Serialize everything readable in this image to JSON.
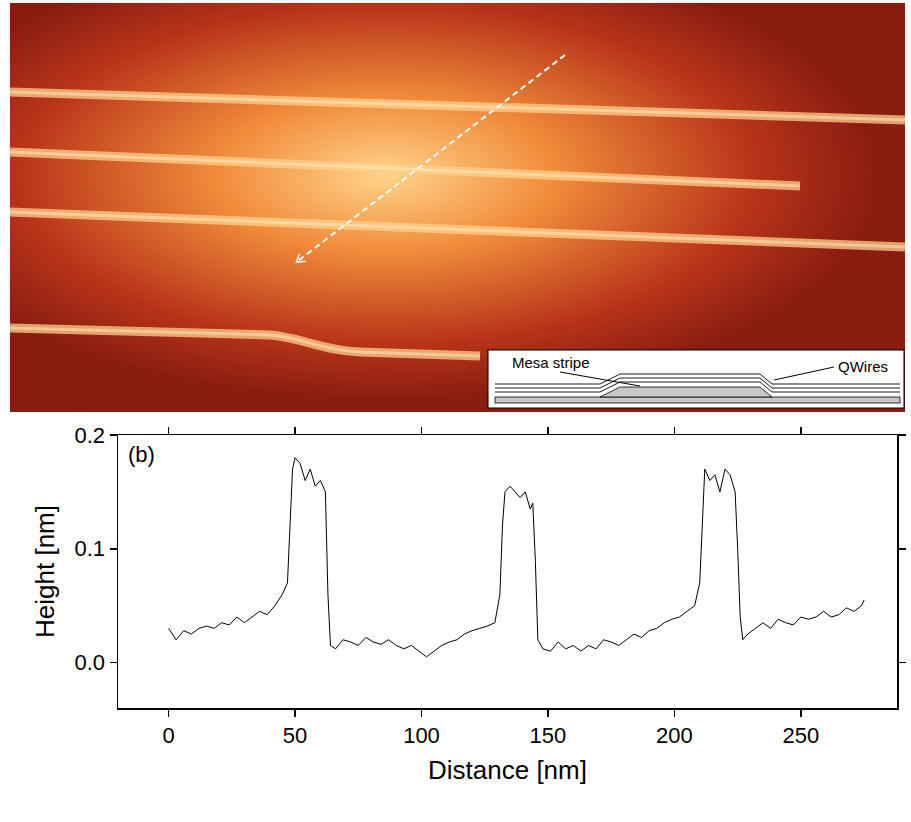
{
  "image": {
    "inset_labels": [
      "Mesa stripe",
      "QWires"
    ]
  },
  "chart_data": {
    "type": "line",
    "panel_label": "(b)",
    "x_label": "Distance [nm]",
    "y_label": "Height [nm]",
    "color": "#000000",
    "x": [
      0,
      3,
      6,
      9,
      12,
      15,
      18,
      21,
      24,
      27,
      30,
      33,
      36,
      39,
      42,
      45,
      47,
      48,
      49,
      50,
      52,
      54,
      56,
      58,
      60,
      62,
      63,
      64,
      66,
      69,
      72,
      75,
      78,
      81,
      84,
      87,
      90,
      93,
      96,
      99,
      102,
      105,
      108,
      111,
      114,
      117,
      120,
      123,
      126,
      129,
      131,
      132,
      133,
      135,
      137,
      139,
      141,
      143,
      144,
      145,
      146,
      148,
      151,
      154,
      157,
      160,
      163,
      166,
      169,
      172,
      175,
      178,
      181,
      184,
      187,
      190,
      193,
      196,
      199,
      202,
      205,
      208,
      210,
      211,
      212,
      214,
      216,
      218,
      220,
      222,
      224,
      225,
      226,
      227,
      229,
      232,
      235,
      238,
      241,
      244,
      247,
      250,
      253,
      256,
      259,
      262,
      265,
      268,
      271,
      274,
      275
    ],
    "values": [
      0.03,
      0.02,
      0.028,
      0.025,
      0.03,
      0.032,
      0.03,
      0.035,
      0.033,
      0.04,
      0.035,
      0.04,
      0.045,
      0.042,
      0.05,
      0.06,
      0.07,
      0.12,
      0.17,
      0.18,
      0.175,
      0.16,
      0.17,
      0.155,
      0.16,
      0.15,
      0.06,
      0.015,
      0.012,
      0.02,
      0.018,
      0.015,
      0.022,
      0.018,
      0.016,
      0.02,
      0.015,
      0.012,
      0.015,
      0.01,
      0.005,
      0.01,
      0.015,
      0.018,
      0.02,
      0.025,
      0.028,
      0.03,
      0.032,
      0.035,
      0.06,
      0.12,
      0.15,
      0.155,
      0.15,
      0.145,
      0.15,
      0.135,
      0.14,
      0.09,
      0.02,
      0.012,
      0.01,
      0.018,
      0.012,
      0.015,
      0.01,
      0.015,
      0.012,
      0.02,
      0.018,
      0.015,
      0.02,
      0.025,
      0.022,
      0.028,
      0.03,
      0.035,
      0.038,
      0.04,
      0.045,
      0.05,
      0.07,
      0.12,
      0.17,
      0.16,
      0.165,
      0.15,
      0.17,
      0.165,
      0.15,
      0.1,
      0.04,
      0.02,
      0.025,
      0.03,
      0.035,
      0.03,
      0.038,
      0.035,
      0.033,
      0.04,
      0.038,
      0.04,
      0.045,
      0.04,
      0.042,
      0.048,
      0.045,
      0.05,
      0.055
    ],
    "xlim": [
      -20,
      288
    ],
    "ylim": [
      -0.04,
      0.2
    ],
    "xticks": [
      0,
      50,
      100,
      150,
      200,
      250
    ],
    "yticks": [
      {
        "value": 0,
        "label": "0.0"
      },
      0.1,
      0.2
    ],
    "grid": false
  }
}
